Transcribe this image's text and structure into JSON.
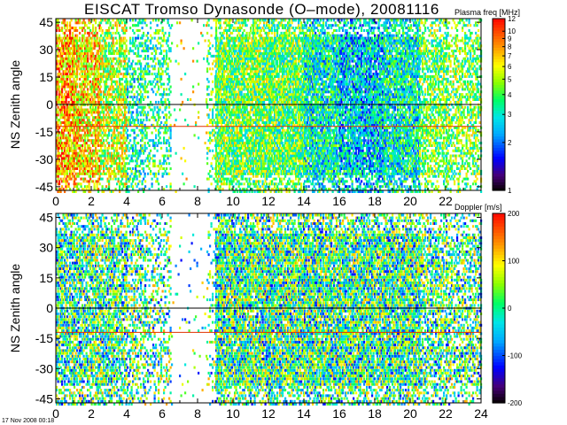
{
  "page": {
    "title": "EISCAT Tromso Dynasonde (O–mode),  20081116",
    "timestamp": "17 Nov 2008 00:18"
  },
  "chart_data": [
    {
      "type": "heatmap",
      "panel": "top",
      "ylabel": "NS Zenith angle",
      "xlim": [
        0,
        24
      ],
      "ylim": [
        -47,
        47
      ],
      "x_ticks": [
        "0",
        "2",
        "4",
        "6",
        "8",
        "10",
        "12",
        "14",
        "16",
        "18",
        "20",
        "22"
      ],
      "y_ticks": [
        "-45",
        "-30",
        "-15",
        "0",
        "15",
        "30",
        "45"
      ],
      "colorbar": {
        "label": "Plasma freq [MHz]",
        "scale": "log",
        "min": 1,
        "max": 12,
        "ticks": [
          "1",
          "2",
          "3",
          "4",
          "5",
          "6",
          "7",
          "8",
          "9",
          "10",
          "12"
        ]
      },
      "reference_lines": [
        {
          "y": 0,
          "color": "#000000"
        },
        {
          "y": -12,
          "color": "#e03000"
        }
      ],
      "activity": [
        {
          "x0": 0.0,
          "x1": 1.0,
          "density": 0.75,
          "value_mean": 7.5
        },
        {
          "x0": 1.0,
          "x1": 2.5,
          "density": 0.72,
          "value_mean": 6.5
        },
        {
          "x0": 2.5,
          "x1": 4.0,
          "density": 0.7,
          "value_mean": 5.0
        },
        {
          "x0": 4.0,
          "x1": 5.0,
          "density": 0.45,
          "value_mean": 3.2
        },
        {
          "x0": 5.0,
          "x1": 6.5,
          "density": 0.35,
          "value_mean": 3.5
        },
        {
          "x0": 6.5,
          "x1": 8.5,
          "density": 0.03,
          "value_mean": 5.0
        },
        {
          "x0": 8.5,
          "x1": 9.0,
          "density": 0.25,
          "value_mean": 4.0
        },
        {
          "x0": 9.0,
          "x1": 12.0,
          "density": 0.85,
          "value_mean": 4.2
        },
        {
          "x0": 12.0,
          "x1": 14.0,
          "density": 0.85,
          "value_mean": 4.0
        },
        {
          "x0": 14.0,
          "x1": 16.0,
          "density": 0.85,
          "value_mean": 3.0
        },
        {
          "x0": 16.0,
          "x1": 18.5,
          "density": 0.85,
          "value_mean": 2.6
        },
        {
          "x0": 18.5,
          "x1": 20.5,
          "density": 0.85,
          "value_mean": 3.0
        },
        {
          "x0": 20.5,
          "x1": 22.0,
          "density": 0.6,
          "value_mean": 4.0
        },
        {
          "x0": 22.0,
          "x1": 24.0,
          "density": 0.5,
          "value_mean": 4.2
        }
      ]
    },
    {
      "type": "heatmap",
      "panel": "bottom",
      "ylabel": "NS Zenith angle",
      "xlim": [
        0,
        24
      ],
      "ylim": [
        -47,
        47
      ],
      "x_ticks": [
        "0",
        "2",
        "4",
        "6",
        "8",
        "10",
        "12",
        "14",
        "16",
        "18",
        "20",
        "22",
        "24"
      ],
      "y_ticks": [
        "-45",
        "-30",
        "-15",
        "0",
        "15",
        "30",
        "45"
      ],
      "colorbar": {
        "label": "Doppler [m/s]",
        "scale": "linear",
        "min": -200,
        "max": 200,
        "ticks": [
          "-200",
          "-100",
          "0",
          "100",
          "200"
        ]
      },
      "reference_lines": [
        {
          "y": 0,
          "color": "#000000"
        },
        {
          "y": -12,
          "color": "#e03000"
        }
      ],
      "activity": [
        {
          "x0": 0.0,
          "x1": 1.0,
          "density": 0.75,
          "value_mean": 0
        },
        {
          "x0": 1.0,
          "x1": 2.5,
          "density": 0.72,
          "value_mean": 0
        },
        {
          "x0": 2.5,
          "x1": 4.0,
          "density": 0.7,
          "value_mean": 0
        },
        {
          "x0": 4.0,
          "x1": 5.0,
          "density": 0.45,
          "value_mean": 0
        },
        {
          "x0": 5.0,
          "x1": 6.5,
          "density": 0.35,
          "value_mean": 0
        },
        {
          "x0": 6.5,
          "x1": 8.5,
          "density": 0.03,
          "value_mean": 0
        },
        {
          "x0": 8.5,
          "x1": 9.0,
          "density": 0.25,
          "value_mean": 0
        },
        {
          "x0": 9.0,
          "x1": 12.0,
          "density": 0.85,
          "value_mean": 0
        },
        {
          "x0": 12.0,
          "x1": 14.0,
          "density": 0.85,
          "value_mean": 0
        },
        {
          "x0": 14.0,
          "x1": 16.0,
          "density": 0.85,
          "value_mean": 0
        },
        {
          "x0": 16.0,
          "x1": 18.5,
          "density": 0.85,
          "value_mean": 0
        },
        {
          "x0": 18.5,
          "x1": 20.5,
          "density": 0.85,
          "value_mean": 0
        },
        {
          "x0": 20.5,
          "x1": 22.0,
          "density": 0.6,
          "value_mean": 0
        },
        {
          "x0": 22.0,
          "x1": 24.0,
          "density": 0.5,
          "value_mean": 0
        }
      ]
    }
  ]
}
